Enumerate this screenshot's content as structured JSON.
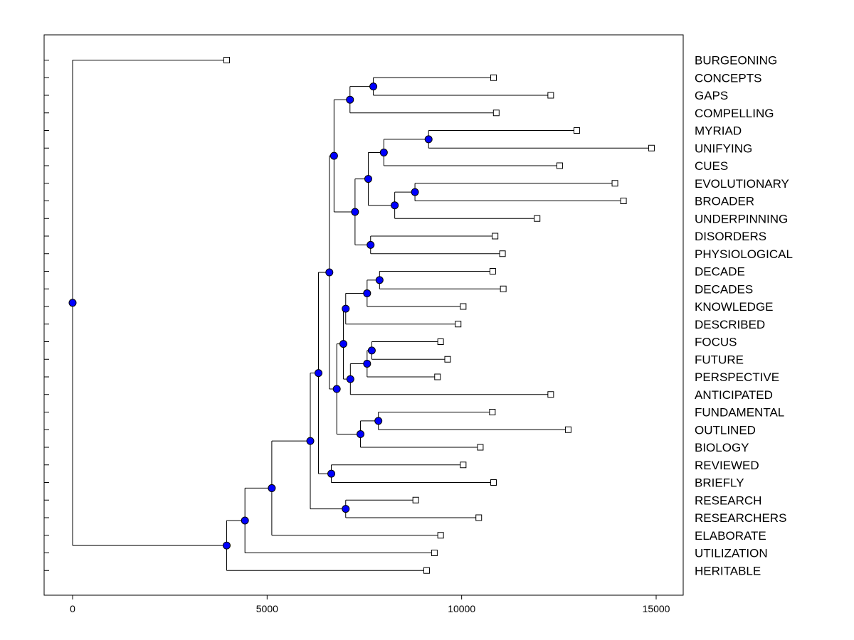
{
  "chart_data": {
    "type": "dendrogram",
    "title": "",
    "xlabel": "",
    "ylabel": "",
    "xlim": [
      -750,
      15600
    ],
    "xticks": [
      0,
      5000,
      10000,
      15000
    ],
    "xtick_labels": [
      "0",
      "5000",
      "10000",
      "15000"
    ],
    "orientation": "horizontal",
    "leaf_order": [
      "BURGEONING",
      "CONCEPTS",
      "GAPS",
      "COMPELLING",
      "MYRIAD",
      "UNIFYING",
      "CUES",
      "EVOLUTIONARY",
      "BROADER",
      "UNDERPINNING",
      "DISORDERS",
      "PHYSIOLOGICAL",
      "DECADE",
      "DECADES",
      "KNOWLEDGE",
      "DESCRIBED",
      "FOCUS",
      "FUTURE",
      "PERSPECTIVE",
      "ANTICIPATED",
      "FUNDAMENTAL",
      "OUTLINED",
      "BIOLOGY",
      "REVIEWED",
      "BRIEFLY",
      "RESEARCH",
      "RESEARCHERS",
      "ELABORATE",
      "UTILIZATION",
      "HERITABLE"
    ],
    "leaf_values": [
      3960,
      10820,
      12290,
      10890,
      12960,
      14880,
      12520,
      13940,
      14160,
      11940,
      10860,
      11050,
      10800,
      11070,
      10040,
      9910,
      9460,
      9640,
      9380,
      12290,
      10790,
      12740,
      10480,
      10040,
      10820,
      8820,
      10440,
      9460,
      9300,
      9100
    ],
    "tree": {
      "value": 0,
      "children": [
        {
          "leaf": "BURGEONING"
        },
        {
          "value": 3960,
          "children": [
            {
              "value": 4430,
              "children": [
                {
                  "value": 5120,
                  "children": [
                    {
                      "value": 6110,
                      "children": [
                        {
                          "value": 6320,
                          "children": [
                            {
                              "value": 6600,
                              "children": [
                                {
                                  "value": 6720,
                                  "children": [
                                    {
                                      "value": 7130,
                                      "children": [
                                        {
                                          "value": 7730,
                                          "children": [
                                            {
                                              "leaf": "CONCEPTS"
                                            },
                                            {
                                              "leaf": "GAPS"
                                            }
                                          ]
                                        },
                                        {
                                          "leaf": "COMPELLING"
                                        }
                                      ]
                                    },
                                    {
                                      "value": 7260,
                                      "children": [
                                        {
                                          "value": 7600,
                                          "children": [
                                            {
                                              "value": 8000,
                                              "children": [
                                                {
                                                  "value": 9150,
                                                  "children": [
                                                    {
                                                      "leaf": "MYRIAD"
                                                    },
                                                    {
                                                      "leaf": "UNIFYING"
                                                    }
                                                  ]
                                                },
                                                {
                                                  "leaf": "CUES"
                                                }
                                              ]
                                            },
                                            {
                                              "value": 8280,
                                              "children": [
                                                {
                                                  "value": 8800,
                                                  "children": [
                                                    {
                                                      "leaf": "EVOLUTIONARY"
                                                    },
                                                    {
                                                      "leaf": "BROADER"
                                                    }
                                                  ]
                                                },
                                                {
                                                  "leaf": "UNDERPINNING"
                                                }
                                              ]
                                            }
                                          ]
                                        },
                                        {
                                          "value": 7660,
                                          "children": [
                                            {
                                              "leaf": "DISORDERS"
                                            },
                                            {
                                              "leaf": "PHYSIOLOGICAL"
                                            }
                                          ]
                                        }
                                      ]
                                    }
                                  ]
                                },
                                {
                                  "value": 6790,
                                  "children": [
                                    {
                                      "value": 6960,
                                      "children": [
                                        {
                                          "value": 7020,
                                          "children": [
                                            {
                                              "value": 7570,
                                              "children": [
                                                {
                                                  "value": 7890,
                                                  "children": [
                                                    {
                                                      "leaf": "DECADE"
                                                    },
                                                    {
                                                      "leaf": "DECADES"
                                                    }
                                                  ]
                                                },
                                                {
                                                  "leaf": "KNOWLEDGE"
                                                }
                                              ]
                                            },
                                            {
                                              "leaf": "DESCRIBED"
                                            }
                                          ]
                                        },
                                        {
                                          "value": 7140,
                                          "children": [
                                            {
                                              "value": 7570,
                                              "children": [
                                                {
                                                  "value": 7690,
                                                  "children": [
                                                    {
                                                      "leaf": "FOCUS"
                                                    },
                                                    {
                                                      "leaf": "FUTURE"
                                                    }
                                                  ]
                                                },
                                                {
                                                  "leaf": "PERSPECTIVE"
                                                }
                                              ]
                                            },
                                            {
                                              "leaf": "ANTICIPATED"
                                            }
                                          ]
                                        }
                                      ]
                                    },
                                    {
                                      "value": 7400,
                                      "children": [
                                        {
                                          "value": 7860,
                                          "children": [
                                            {
                                              "leaf": "FUNDAMENTAL"
                                            },
                                            {
                                              "leaf": "OUTLINED"
                                            }
                                          ]
                                        },
                                        {
                                          "leaf": "BIOLOGY"
                                        }
                                      ]
                                    }
                                  ]
                                }
                              ]
                            },
                            {
                              "value": 6650,
                              "children": [
                                {
                                  "leaf": "REVIEWED"
                                },
                                {
                                  "leaf": "BRIEFLY"
                                }
                              ]
                            }
                          ]
                        },
                        {
                          "value": 7020,
                          "children": [
                            {
                              "leaf": "RESEARCH"
                            },
                            {
                              "leaf": "RESEARCHERS"
                            }
                          ]
                        }
                      ]
                    },
                    {
                      "leaf": "ELABORATE"
                    }
                  ]
                },
                {
                  "leaf": "UTILIZATION"
                }
              ]
            },
            {
              "leaf": "HERITABLE"
            }
          ]
        }
      ]
    },
    "node_color": "#0000ff",
    "leaf_marker_color": "#ffffff",
    "line_color": "#000000"
  }
}
